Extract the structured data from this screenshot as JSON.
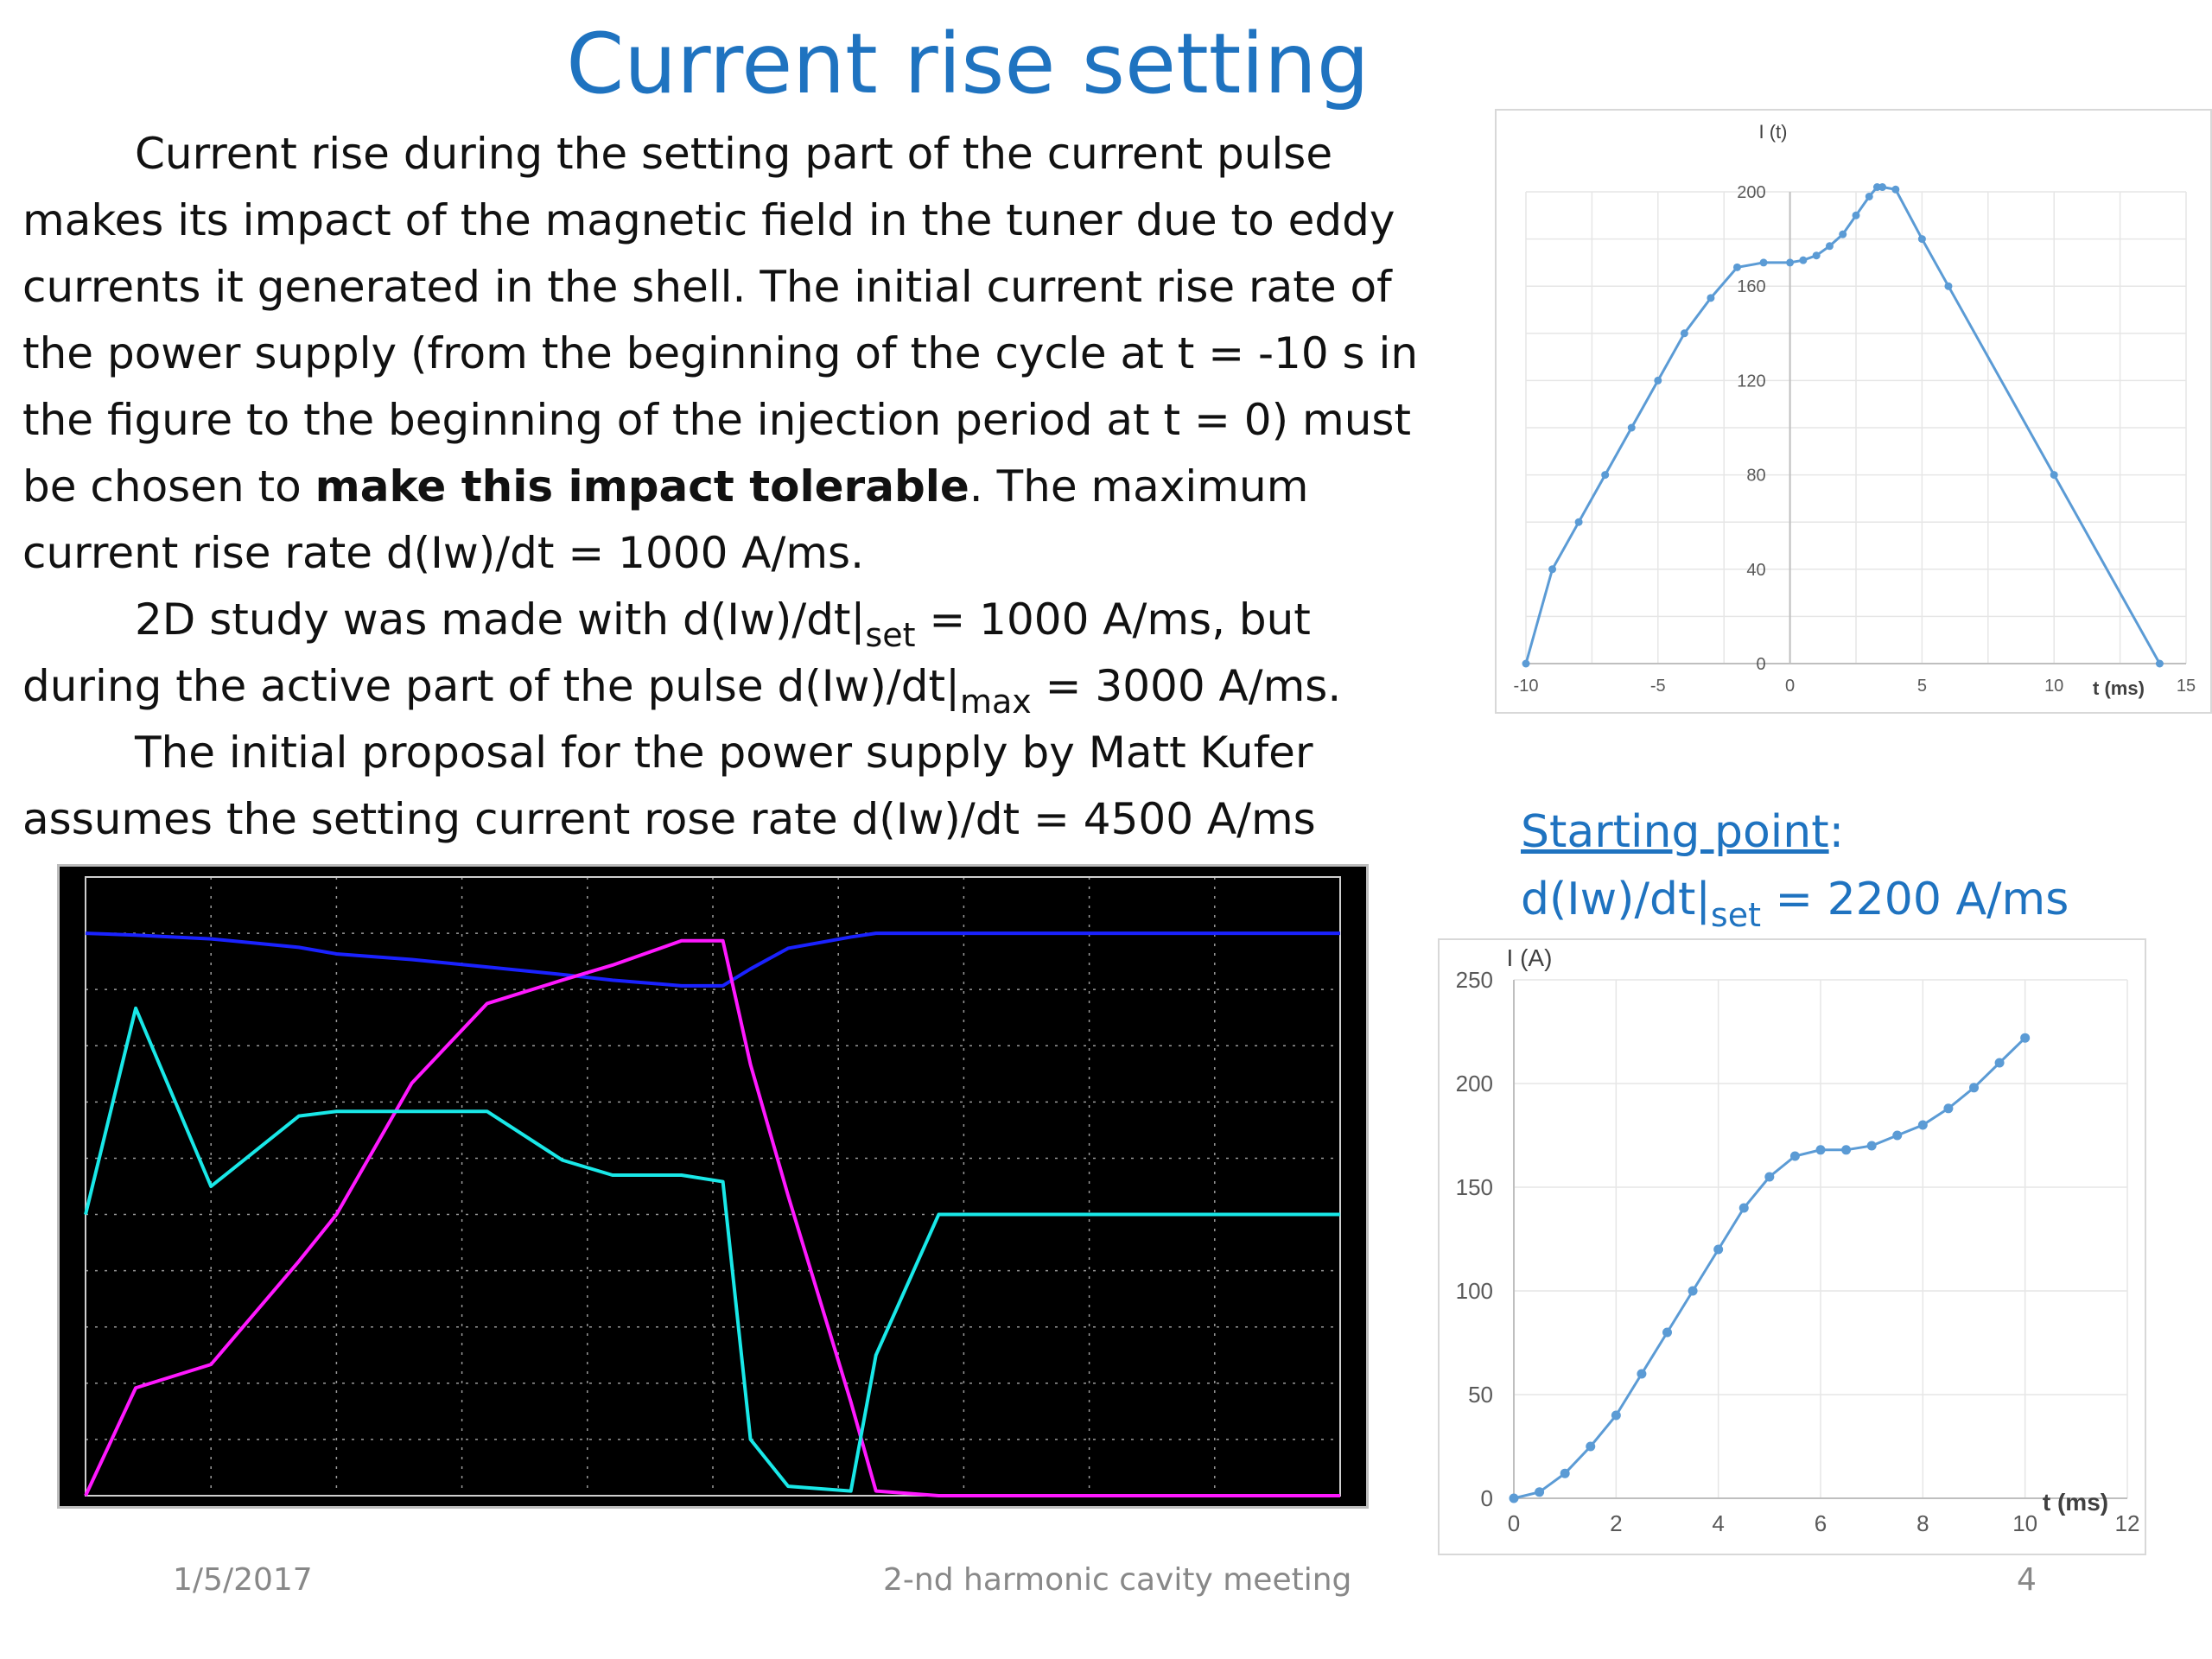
{
  "slide": {
    "title": "Current rise setting",
    "paragraphs": {
      "p1_a": "Current rise during the setting part of the current pulse makes its impact of the magnetic field in the tuner due to eddy currents it generated in the shell. The initial current rise rate of the power supply (from the beginning of the cycle at t = -10 s in the figure to the beginning of the injection period at t = 0) must be chosen to ",
      "p1_bold": "make this impact tolerable",
      "p1_b": ". The maximum current rise rate d(Iw)/dt = 1000 A/ms.",
      "p2_a": "2D study was made with  d(Iw)/dt|",
      "p2_sub1": "set",
      "p2_b": " = 1000 A/ms, but during the active part of the pulse d(Iw)/dt|",
      "p2_sub2": "max",
      "p2_c": " = 3000 A/ms.",
      "p3": "The initial proposal for the power supply by Matt Kufer assumes the setting current rose rate d(Iw)/dt = 4500 A/ms"
    },
    "starting_point": {
      "heading": "Starting point",
      "colon": ":",
      "formula_a": "d(Iw)/dt|",
      "formula_sub": "set",
      "formula_b": " = 2200 A/ms"
    },
    "footer": {
      "date": "1/5/2017",
      "meeting": "2-nd harmonic cavity meeting",
      "page": "4"
    }
  },
  "chart_data": [
    {
      "type": "line",
      "title": "",
      "xlabel": "t (ms)",
      "ylabel": "I (t)",
      "xlim": [
        -10,
        15
      ],
      "ylim": [
        0,
        200
      ],
      "xticks": [
        -10,
        -5,
        0,
        5,
        10,
        15
      ],
      "yticks": [
        0,
        40,
        80,
        120,
        160,
        200
      ],
      "grid": true,
      "color": "#5b9bd5",
      "series": [
        {
          "x": [
            -10,
            -9,
            -8,
            -7,
            -6,
            -5,
            -4,
            -3,
            -2,
            -1,
            0,
            0.5,
            1,
            1.5,
            2,
            2.5,
            3,
            3.3,
            3.5,
            4,
            5,
            6,
            10,
            14
          ],
          "y": [
            0,
            40,
            60,
            80,
            100,
            120,
            140,
            155,
            168,
            170,
            170,
            171,
            173,
            177,
            182,
            190,
            198,
            202,
            202,
            201,
            180,
            160,
            80,
            0
          ]
        }
      ]
    },
    {
      "type": "line",
      "title": "",
      "xlabel": "t (ms)",
      "ylabel": "I (A)",
      "xlim": [
        0,
        12
      ],
      "ylim": [
        0,
        250
      ],
      "xticks": [
        0,
        2,
        4,
        6,
        8,
        10,
        12
      ],
      "yticks": [
        0,
        50,
        100,
        150,
        200,
        250
      ],
      "grid": true,
      "color": "#5b9bd5",
      "series": [
        {
          "x": [
            0,
            0.5,
            1,
            1.5,
            2,
            2.5,
            3,
            3.5,
            4,
            4.5,
            5,
            5.5,
            6,
            6.5,
            7,
            7.5,
            8,
            8.5,
            9,
            9.5,
            10
          ],
          "y": [
            0,
            3,
            12,
            25,
            40,
            60,
            80,
            100,
            120,
            140,
            155,
            165,
            168,
            168,
            170,
            175,
            180,
            188,
            198,
            210,
            222
          ]
        }
      ]
    },
    {
      "type": "line",
      "title": "",
      "xlabel": "",
      "ylabel": "",
      "background": "#000000",
      "xlim": [
        0,
        1000
      ],
      "ylim": [
        -300,
        360
      ],
      "x": [
        0,
        40,
        100,
        170,
        200,
        260,
        320,
        380,
        420,
        475,
        508,
        530,
        560,
        610,
        630,
        680,
        720,
        760,
        800,
        870,
        1000
      ],
      "series": [
        {
          "color": "#1a22ff",
          "y": [
            300,
            298,
            294,
            285,
            278,
            272,
            264,
            256,
            250,
            244,
            244,
            262,
            284,
            296,
            300,
            300,
            300,
            300,
            300,
            300,
            300
          ]
        },
        {
          "color": "#ff18ff",
          "y": [
            -300,
            -185,
            -160,
            -50,
            0,
            140,
            225,
            250,
            266,
            292,
            292,
            160,
            20,
            -200,
            -295,
            -300,
            -300,
            -300,
            -300,
            -300,
            -300
          ]
        },
        {
          "color": "#19e8e8",
          "y": [
            0,
            220,
            30,
            105,
            110,
            110,
            110,
            58,
            42,
            42,
            35,
            -240,
            -290,
            -295,
            -150,
            0,
            0,
            0,
            0,
            0,
            0
          ]
        }
      ]
    }
  ]
}
